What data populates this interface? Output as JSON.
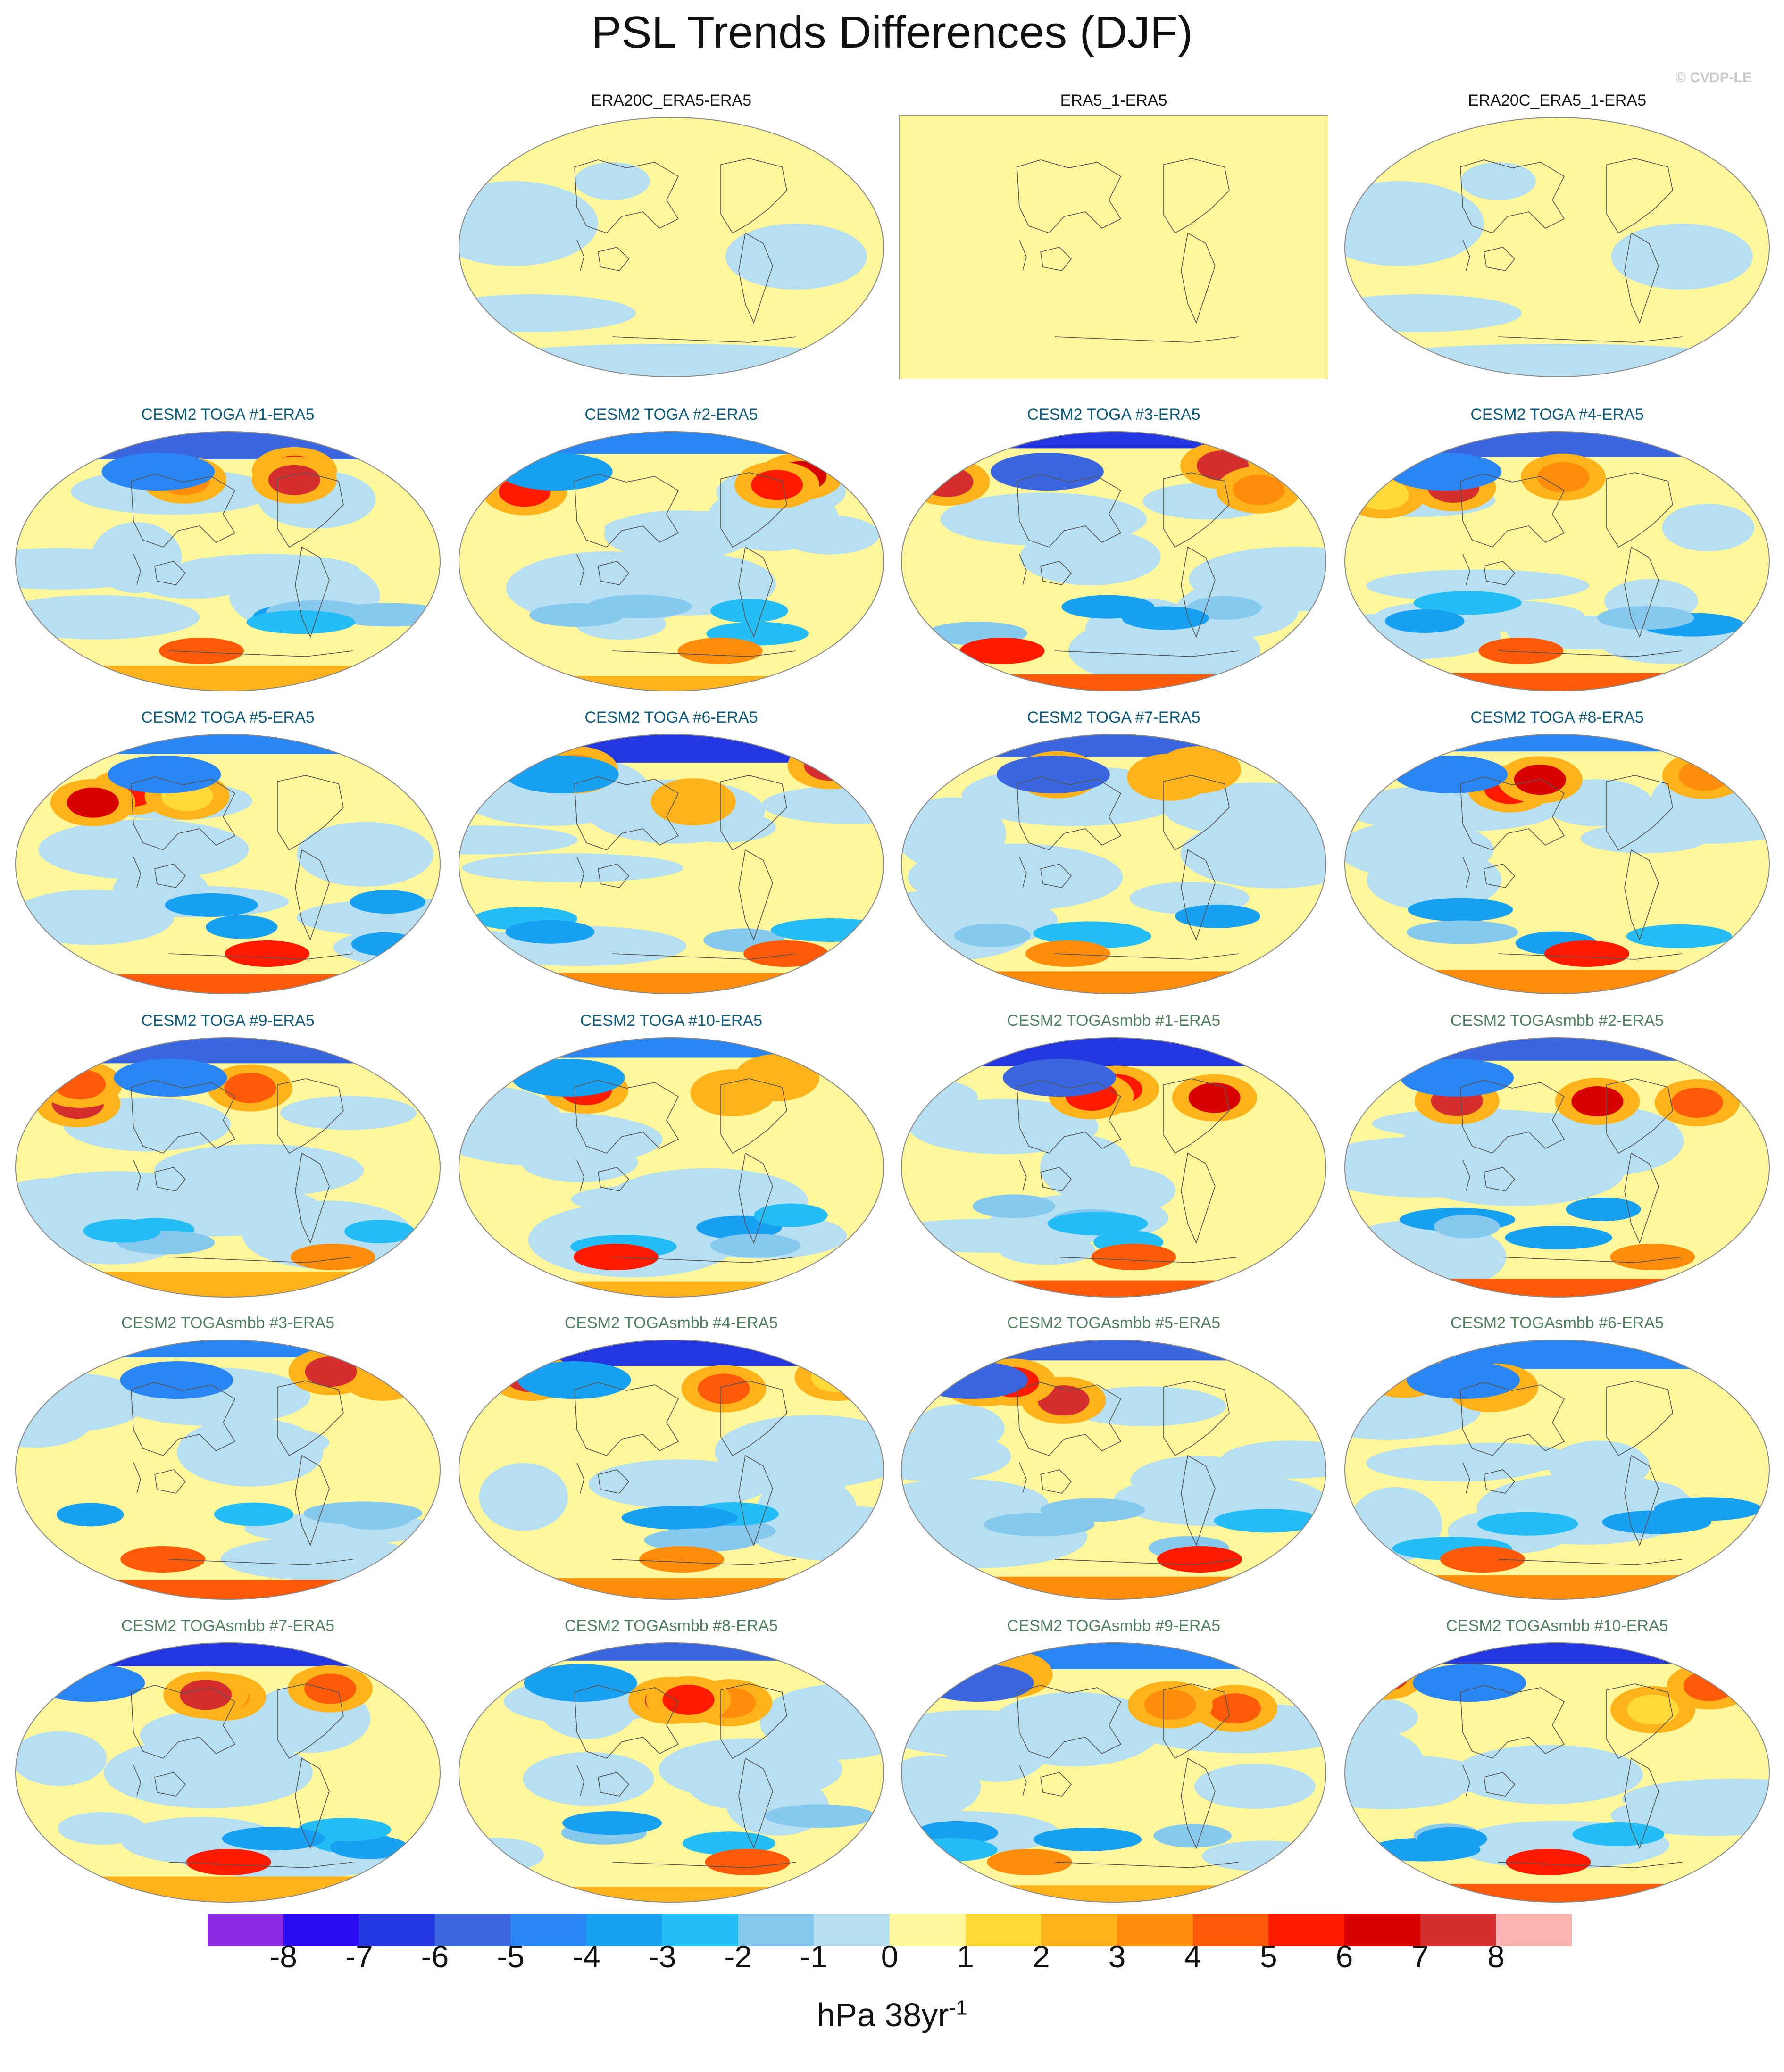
{
  "figure": {
    "title": "PSL Trends Differences (DJF)",
    "credit": "© CVDP-LE",
    "units_base": "hPa 38yr",
    "units_exp": "-1"
  },
  "colorbar": {
    "colors": [
      "#8a2be2",
      "#2a0cf5",
      "#2336e0",
      "#3a66e0",
      "#2a85f5",
      "#18a0f2",
      "#25bdf5",
      "#87c8ee",
      "#b6e0f2",
      "#fff79a",
      "#ffd83a",
      "#ffb21a",
      "#ff8c0a",
      "#ff5a08",
      "#ff1a00",
      "#d90000",
      "#d42e2e",
      "#ffb4b4"
    ],
    "labels": [
      "-8",
      "-7",
      "-6",
      "-5",
      "-4",
      "-3",
      "-2",
      "-1",
      "0",
      "1",
      "2",
      "3",
      "4",
      "5",
      "6",
      "7",
      "8"
    ]
  },
  "panels": [
    {
      "title": "ERA20C_ERA5-ERA5",
      "color": "#111111",
      "style": "obs"
    },
    {
      "title": "ERA5_1-ERA5",
      "color": "#111111",
      "style": "empty"
    },
    {
      "title": "ERA20C_ERA5_1-ERA5",
      "color": "#111111",
      "style": "obs"
    },
    {
      "title": "CESM2 TOGA #1-ERA5",
      "color": "#0e5a7a",
      "style": "model"
    },
    {
      "title": "CESM2 TOGA #2-ERA5",
      "color": "#0e5a7a",
      "style": "model"
    },
    {
      "title": "CESM2 TOGA #3-ERA5",
      "color": "#0e5a7a",
      "style": "model"
    },
    {
      "title": "CESM2 TOGA #4-ERA5",
      "color": "#0e5a7a",
      "style": "model"
    },
    {
      "title": "CESM2 TOGA #5-ERA5",
      "color": "#0e5a7a",
      "style": "model"
    },
    {
      "title": "CESM2 TOGA #6-ERA5",
      "color": "#0e5a7a",
      "style": "model"
    },
    {
      "title": "CESM2 TOGA #7-ERA5",
      "color": "#0e5a7a",
      "style": "model"
    },
    {
      "title": "CESM2 TOGA #8-ERA5",
      "color": "#0e5a7a",
      "style": "model"
    },
    {
      "title": "CESM2 TOGA #9-ERA5",
      "color": "#0e5a7a",
      "style": "model"
    },
    {
      "title": "CESM2 TOGA #10-ERA5",
      "color": "#0e5a7a",
      "style": "model"
    },
    {
      "title": "CESM2 TOGAsmbb #1-ERA5",
      "color": "#4f7f5f",
      "style": "model"
    },
    {
      "title": "CESM2 TOGAsmbb #2-ERA5",
      "color": "#4f7f5f",
      "style": "model"
    },
    {
      "title": "CESM2 TOGAsmbb #3-ERA5",
      "color": "#4f7f5f",
      "style": "model"
    },
    {
      "title": "CESM2 TOGAsmbb #4-ERA5",
      "color": "#4f7f5f",
      "style": "model"
    },
    {
      "title": "CESM2 TOGAsmbb #5-ERA5",
      "color": "#4f7f5f",
      "style": "model"
    },
    {
      "title": "CESM2 TOGAsmbb #6-ERA5",
      "color": "#4f7f5f",
      "style": "model"
    },
    {
      "title": "CESM2 TOGAsmbb #7-ERA5",
      "color": "#4f7f5f",
      "style": "model"
    },
    {
      "title": "CESM2 TOGAsmbb #8-ERA5",
      "color": "#4f7f5f",
      "style": "model"
    },
    {
      "title": "CESM2 TOGAsmbb #9-ERA5",
      "color": "#4f7f5f",
      "style": "model"
    },
    {
      "title": "CESM2 TOGAsmbb #10-ERA5",
      "color": "#4f7f5f",
      "style": "model"
    }
  ]
}
